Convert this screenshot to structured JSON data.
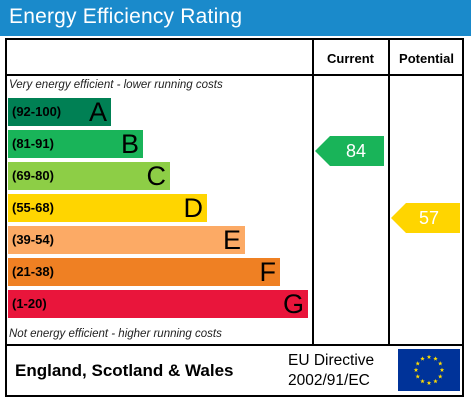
{
  "title": "Energy Efficiency Rating",
  "columns": {
    "current": "Current",
    "potential": "Potential"
  },
  "notes": {
    "top": "Very energy efficient - lower running costs",
    "bottom": "Not energy efficient - higher running costs"
  },
  "bands": [
    {
      "range": "(92-100)",
      "letter": "A",
      "color": "#008054"
    },
    {
      "range": "(81-91)",
      "letter": "B",
      "color": "#19b459"
    },
    {
      "range": "(69-80)",
      "letter": "C",
      "color": "#8dce46"
    },
    {
      "range": "(55-68)",
      "letter": "D",
      "color": "#ffd500"
    },
    {
      "range": "(39-54)",
      "letter": "E",
      "color": "#fcaa65"
    },
    {
      "range": "(21-38)",
      "letter": "F",
      "color": "#ef8023"
    },
    {
      "range": "(1-20)",
      "letter": "G",
      "color": "#e9153b"
    }
  ],
  "current": {
    "value": "84",
    "band": "B",
    "color": "#19b459"
  },
  "potential": {
    "value": "57",
    "band": "D",
    "color": "#ffd500"
  },
  "footer": {
    "region": "England, Scotland & Wales",
    "directive_line1": "EU Directive",
    "directive_line2": "2002/91/EC",
    "flag_icon": "eu-flag-icon"
  },
  "colors": {
    "title_bar": "#1a8acb",
    "flag_blue": "#003399",
    "flag_star": "#ffdd00"
  }
}
